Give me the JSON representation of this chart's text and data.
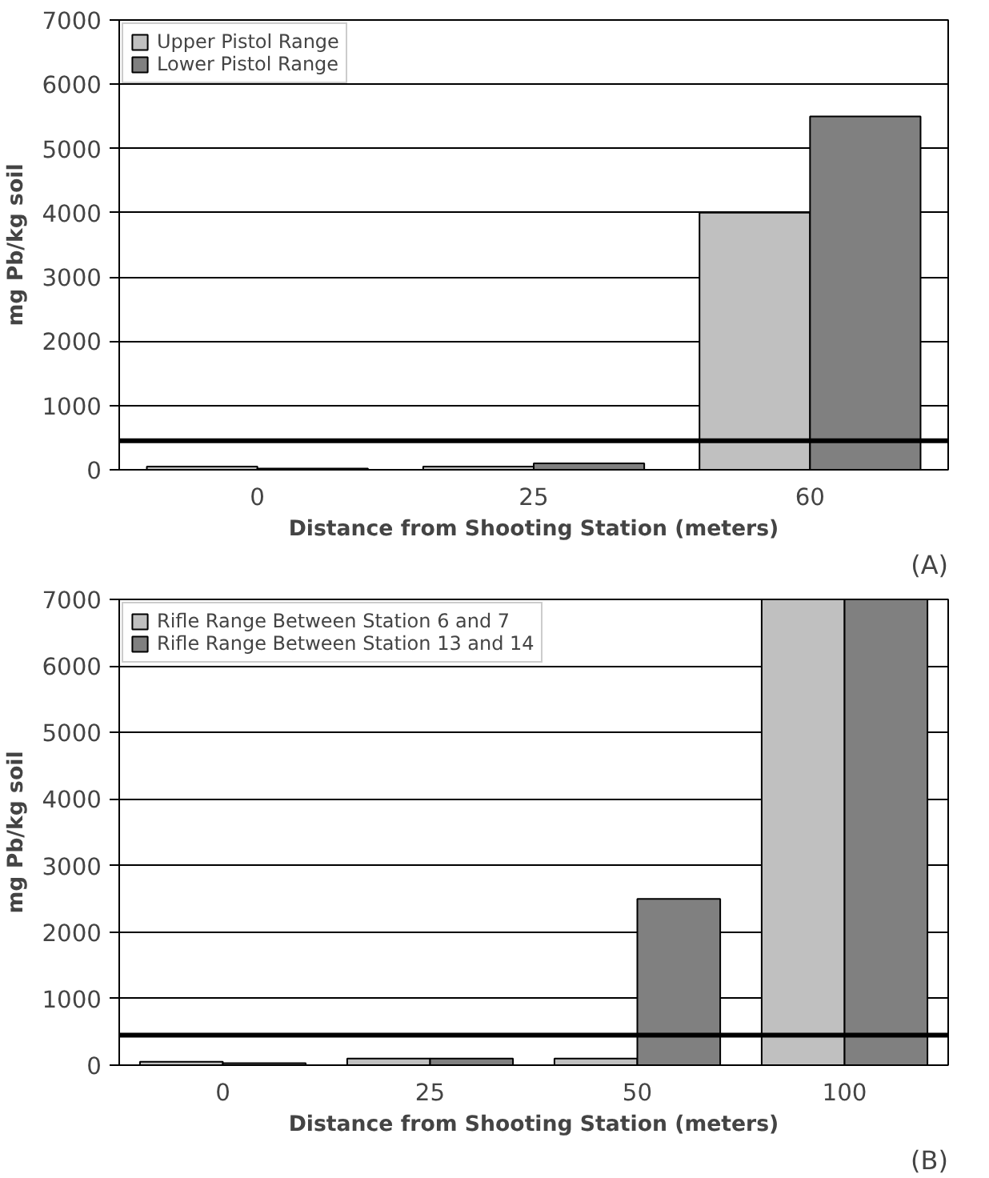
{
  "chart_data": [
    {
      "type": "bar",
      "xlabel": "Distance from Shooting Station (meters)",
      "ylabel": "mg Pb/kg soil",
      "annotations": [
        "(A)"
      ],
      "categories": [
        "0",
        "25",
        "60"
      ],
      "series": [
        {
          "name": "Upper Pistol Range",
          "color": "#c0c0c0",
          "values": [
            50,
            50,
            4000
          ]
        },
        {
          "name": "Lower Pistol Range",
          "color": "#808080",
          "values": [
            20,
            100,
            5500
          ]
        }
      ],
      "ylim": [
        0,
        7000
      ],
      "yticks": [
        0,
        1000,
        2000,
        3000,
        4000,
        5000,
        6000,
        7000
      ],
      "grid": "y",
      "legend": "top left",
      "ref_lines": [
        {
          "axis": "y",
          "value": 450,
          "color": "#000000"
        }
      ]
    },
    {
      "type": "bar",
      "xlabel": "Distance from Shooting Station (meters)",
      "ylabel": "mg Pb/kg soil",
      "annotations": [
        "(B)"
      ],
      "categories": [
        "0",
        "25",
        "50",
        "100"
      ],
      "series": [
        {
          "name": "Rifle Range Between Station 6 and 7",
          "color": "#c0c0c0",
          "values": [
            50,
            100,
            100,
            7000
          ]
        },
        {
          "name": "Rifle Range Between Station 13 and 14",
          "color": "#808080",
          "values": [
            30,
            100,
            2500,
            7000
          ]
        }
      ],
      "ylim": [
        0,
        7000
      ],
      "yticks": [
        0,
        1000,
        2000,
        3000,
        4000,
        5000,
        6000,
        7000
      ],
      "grid": "y",
      "legend": "top left",
      "ref_lines": [
        {
          "axis": "y",
          "value": 450,
          "color": "#000000"
        }
      ]
    }
  ]
}
